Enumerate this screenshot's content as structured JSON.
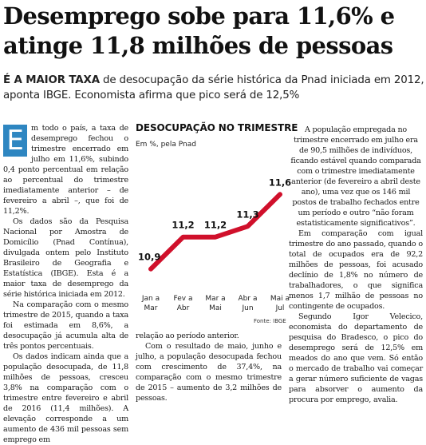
{
  "headline": {
    "line1": "Desemprego sobe para 11,6% e",
    "line2": "atinge 11,8 milhões de pessoas"
  },
  "subhead": {
    "lead": "É A MAIOR TAXA",
    "text": " de desocupação da série histórica da Pnad iniciada em 2012, aponta IBGE. Economista afirma que pico será de 12,5%"
  },
  "article": {
    "dropcap": "E",
    "left_col": [
      "m todo o país, a taxa de desemprego fechou o trimestre encerrado em julho em 11,6%, subindo 0,4 ponto percentual em relação ao percentual do trimestre imediatamente anterior – de fevereiro a abril –, que foi de 11,2%.",
      "Os dados são da Pesquisa Nacional por Amostra de Domicílio (Pnad Contínua), divulgada ontem pelo Instituto Brasileiro de Geografia e Estatística (IBGE). Esta é a maior taxa de desemprego da série histórica iniciada em 2012.",
      "Na comparação com o mesmo trimestre de 2015, quando a taxa foi estimada em 8,6%, a desocupação já acumula alta de três pontos percentuais.",
      "Os dados indicam ainda que a população desocupada, de 11,8 milhões de pessoas, cresceu 3,8% na comparação com o trimestre entre fevereiro e abril de 2016 (11,4 milhões). A elevação corresponde a um aumento de 436 mil pessoas sem emprego em"
    ],
    "mid_col": [
      "relação ao período anterior.",
      "Com o resultado de maio, junho e julho, a população desocupada fechou com crescimento de 37,4%, na comparação com o mesmo trimestre de 2015 – aumento de 3,2 milhões de pessoas."
    ],
    "right_col": [
      "A população empregada no trimestre encerrado em julho era de 90,5 milhões de indivíduos, ficando estável quando comparada com o trimestre imediatamente anterior (de fevereiro a abril deste ano), uma vez que os 146 mil postos de trabalho fechados entre um período e outro “não foram estatisticamente significativos”.",
      "Em comparação com igual trimestre do ano passado, quando o total de ocupados era de 92,2 milhões de pessoas, foi acusado declínio de 1,8% no número de trabalhadores, o que significa menos 1,7 milhão de pessoas no contingente de ocupados.",
      "Segundo Igor Velecico, economista do departamento de pesquisa do Bradesco, o pico do desemprego será de 12,5% em meados do ano que vem. Só então o mercado de trabalho vai começar a gerar número suficiente de vagas para absorver o aumento da procura por emprego, avalia."
    ]
  },
  "chart": {
    "title": "DESOCUPAÇÃO NO TRIMESTRE",
    "subtitle": "Em %, pela Pnad",
    "source": "Fonte: IBGE",
    "line_color": "#d0102b"
  },
  "chart_data": {
    "type": "line",
    "title": "DESOCUPAÇÃO NO TRIMESTRE",
    "subtitle": "Em %, pela Pnad",
    "x": [
      [
        "Jan a",
        "Mar"
      ],
      [
        "Fev a",
        "Abr"
      ],
      [
        "Mar a",
        "Mai"
      ],
      [
        "Abr a",
        "Jun"
      ],
      [
        "Mai a",
        "Jul"
      ]
    ],
    "values": [
      10.9,
      11.2,
      11.2,
      11.3,
      11.6
    ],
    "labels": [
      "10,9",
      "11,2",
      "11,2",
      "11,3",
      "11,6"
    ],
    "ylim": [
      10.8,
      11.7
    ],
    "grid": false,
    "legend": "none"
  }
}
